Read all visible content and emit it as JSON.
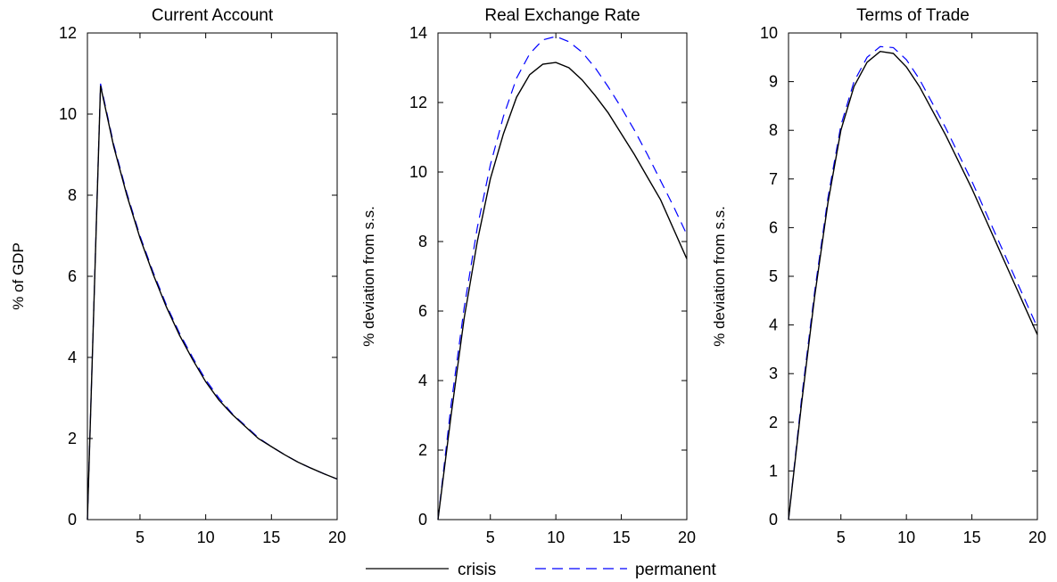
{
  "colors": {
    "crisis": "#000000",
    "permanent": "#0000ff",
    "axes": "#000000"
  },
  "legend": {
    "crisis_label": "crisis",
    "permanent_label": "permanent",
    "placement": "bottom-center"
  },
  "chart_data": [
    {
      "type": "line",
      "title": "Current Account",
      "xlabel": "",
      "ylabel": "% of GDP",
      "xlim": [
        1,
        20
      ],
      "ylim": [
        0,
        12
      ],
      "xticks": [
        5,
        10,
        15,
        20
      ],
      "yticks": [
        0,
        2,
        4,
        6,
        8,
        10,
        12
      ],
      "x": [
        1,
        2,
        3,
        4,
        5,
        6,
        7,
        8,
        9,
        10,
        11,
        12,
        13,
        14,
        15,
        16,
        17,
        18,
        19,
        20
      ],
      "series": [
        {
          "name": "crisis",
          "values": [
            0,
            10.7,
            9.2,
            8.0,
            6.95,
            6.05,
            5.25,
            4.55,
            3.95,
            3.4,
            2.95,
            2.6,
            2.3,
            2.0,
            1.8,
            1.6,
            1.42,
            1.27,
            1.13,
            1.0
          ]
        },
        {
          "name": "permanent",
          "values": [
            0,
            10.75,
            9.25,
            8.05,
            7.0,
            6.1,
            5.3,
            4.6,
            4.0,
            3.45,
            3.0,
            2.62,
            2.32,
            2.02,
            1.8,
            1.6,
            1.42,
            1.27,
            1.13,
            1.0
          ]
        }
      ]
    },
    {
      "type": "line",
      "title": "Real Exchange Rate",
      "xlabel": "",
      "ylabel": "% deviation from s.s.",
      "xlim": [
        1,
        20
      ],
      "ylim": [
        0,
        14
      ],
      "xticks": [
        5,
        10,
        15,
        20
      ],
      "yticks": [
        0,
        2,
        4,
        6,
        8,
        10,
        12,
        14
      ],
      "x": [
        1,
        2,
        3,
        4,
        5,
        6,
        7,
        8,
        9,
        10,
        11,
        12,
        13,
        14,
        15,
        16,
        17,
        18,
        19,
        20
      ],
      "series": [
        {
          "name": "crisis",
          "values": [
            0,
            3.0,
            5.8,
            8.0,
            9.8,
            11.1,
            12.15,
            12.8,
            13.1,
            13.15,
            13.0,
            12.65,
            12.2,
            11.7,
            11.1,
            10.5,
            9.85,
            9.2,
            8.35,
            7.5
          ]
        },
        {
          "name": "permanent",
          "values": [
            0,
            3.3,
            6.1,
            8.4,
            10.2,
            11.6,
            12.7,
            13.4,
            13.8,
            13.9,
            13.75,
            13.45,
            13.0,
            12.45,
            11.85,
            11.2,
            10.5,
            9.75,
            9.0,
            8.2
          ]
        }
      ]
    },
    {
      "type": "line",
      "title": "Terms of Trade",
      "xlabel": "",
      "ylabel": "% deviation from s.s.",
      "xlim": [
        1,
        20
      ],
      "ylim": [
        0,
        10
      ],
      "xticks": [
        5,
        10,
        15,
        20
      ],
      "yticks": [
        0,
        1,
        2,
        3,
        4,
        5,
        6,
        7,
        8,
        9,
        10
      ],
      "x": [
        1,
        2,
        3,
        4,
        5,
        6,
        7,
        8,
        9,
        10,
        11,
        12,
        13,
        14,
        15,
        16,
        17,
        18,
        19,
        20
      ],
      "series": [
        {
          "name": "crisis",
          "values": [
            0,
            2.4,
            4.6,
            6.5,
            8.0,
            8.9,
            9.4,
            9.62,
            9.58,
            9.3,
            8.9,
            8.4,
            7.9,
            7.35,
            6.8,
            6.2,
            5.6,
            5.0,
            4.4,
            3.8
          ]
        },
        {
          "name": "permanent",
          "values": [
            0,
            2.5,
            4.7,
            6.6,
            8.1,
            9.0,
            9.5,
            9.72,
            9.7,
            9.45,
            9.05,
            8.55,
            8.05,
            7.5,
            6.95,
            6.35,
            5.75,
            5.15,
            4.55,
            3.95
          ]
        }
      ]
    }
  ]
}
